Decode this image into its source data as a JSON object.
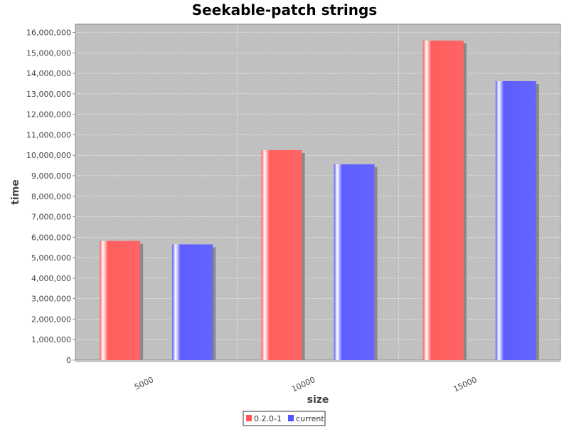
{
  "chart_data": {
    "type": "bar",
    "title": "Seekable-patch strings",
    "xlabel": "size",
    "ylabel": "time",
    "categories": [
      "5000",
      "10000",
      "15000"
    ],
    "series": [
      {
        "name": "0.2.0-1",
        "color": "#ff5555",
        "values": [
          5820000,
          10250000,
          15600000
        ]
      },
      {
        "name": "current",
        "color": "#5555ff",
        "values": [
          5650000,
          9560000,
          13620000
        ]
      }
    ],
    "ylim": [
      0,
      16400000
    ],
    "yticks": [
      0,
      1000000,
      2000000,
      3000000,
      4000000,
      5000000,
      6000000,
      7000000,
      8000000,
      9000000,
      10000000,
      11000000,
      12000000,
      13000000,
      14000000,
      15000000,
      16000000
    ],
    "ytick_labels": [
      "0",
      "1,000,000",
      "2,000,000",
      "3,000,000",
      "4,000,000",
      "5,000,000",
      "6,000,000",
      "7,000,000",
      "8,000,000",
      "9,000,000",
      "10,000,000",
      "11,000,000",
      "12,000,000",
      "13,000,000",
      "14,000,000",
      "15,000,000",
      "16,000,000"
    ],
    "grid": true,
    "legend_position": "bottom",
    "plot_background": "#c0c0c0"
  }
}
